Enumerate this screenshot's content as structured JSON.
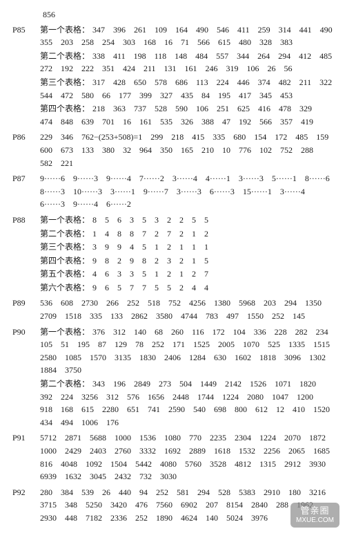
{
  "top_orphan": "856",
  "blocks": [
    {
      "page": "P85",
      "sections": [
        {
          "lede": "第一个表格：",
          "nums": [
            "347",
            "396",
            "261",
            "109",
            "164",
            "490",
            "546",
            "411",
            "259",
            "314",
            "441",
            "490",
            "355",
            "203",
            "258",
            "254",
            "303",
            "168",
            "16",
            "71",
            "566",
            "615",
            "480",
            "328",
            "383"
          ]
        },
        {
          "lede": "第二个表格：",
          "nums": [
            "338",
            "411",
            "198",
            "118",
            "148",
            "484",
            "557",
            "344",
            "264",
            "294",
            "412",
            "485",
            "272",
            "192",
            "222",
            "351",
            "424",
            "211",
            "131",
            "161",
            "246",
            "319",
            "106",
            "26",
            "56"
          ]
        },
        {
          "lede": "第三个表格：",
          "nums": [
            "317",
            "428",
            "650",
            "578",
            "686",
            "113",
            "224",
            "446",
            "374",
            "482",
            "211",
            "322",
            "544",
            "472",
            "580",
            "66",
            "177",
            "399",
            "327",
            "435",
            "84",
            "195",
            "417",
            "345",
            "453"
          ]
        },
        {
          "lede": "第四个表格：",
          "nums": [
            "218",
            "363",
            "737",
            "528",
            "590",
            "106",
            "251",
            "625",
            "416",
            "478",
            "329",
            "474",
            "848",
            "639",
            "701",
            "16",
            "161",
            "535",
            "326",
            "388",
            "47",
            "192",
            "566",
            "357",
            "419"
          ]
        }
      ]
    },
    {
      "page": "P86",
      "sections": [
        {
          "lede": "",
          "nums": [
            "229",
            "346",
            "762−(253+508)=1",
            "299",
            "218",
            "415",
            "335",
            "680",
            "154",
            "172",
            "485",
            "159",
            "600",
            "673",
            "133",
            "380",
            "32",
            "964",
            "350",
            "165",
            "210",
            "10",
            "776",
            "102",
            "752",
            "288",
            "582",
            "221"
          ]
        }
      ]
    },
    {
      "page": "P87",
      "sections": [
        {
          "lede": "",
          "nums": [
            "9······6",
            "9······3",
            "9······4",
            "7······2",
            "3······4",
            "4······1",
            "3······3",
            "5······1",
            "8······6",
            "8······3",
            "10······3",
            "3······1",
            "9······7",
            "3······3",
            "6······3",
            "15······1",
            "3······4",
            "6······3",
            "9······4",
            "6······2"
          ]
        }
      ]
    },
    {
      "page": "P88",
      "sections": [
        {
          "lede": "第一个表格：",
          "nums": [
            "8",
            "5",
            "6",
            "3",
            "5",
            "3",
            "2",
            "2",
            "5",
            "5"
          ]
        },
        {
          "lede": "第二个表格：",
          "nums": [
            "1",
            "4",
            "8",
            "8",
            "7",
            "2",
            "7",
            "2",
            "1",
            "2"
          ]
        },
        {
          "lede": "第三个表格：",
          "nums": [
            "3",
            "9",
            "9",
            "4",
            "5",
            "1",
            "2",
            "1",
            "1",
            "1"
          ]
        },
        {
          "lede": "第四个表格：",
          "nums": [
            "9",
            "8",
            "2",
            "9",
            "8",
            "2",
            "3",
            "2",
            "1",
            "5"
          ]
        },
        {
          "lede": "第五个表格：",
          "nums": [
            "4",
            "6",
            "3",
            "3",
            "5",
            "1",
            "2",
            "1",
            "2",
            "7"
          ]
        },
        {
          "lede": "第六个表格：",
          "nums": [
            "9",
            "6",
            "5",
            "7",
            "7",
            "5",
            "5",
            "2",
            "4",
            "4"
          ]
        }
      ]
    },
    {
      "page": "P89",
      "sections": [
        {
          "lede": "",
          "nums": [
            "536",
            "608",
            "2730",
            "266",
            "252",
            "518",
            "752",
            "4256",
            "1380",
            "5968",
            "203",
            "294",
            "1350",
            "2709",
            "1518",
            "335",
            "133",
            "2862",
            "3580",
            "4744",
            "783",
            "497",
            "1550",
            "252",
            "145"
          ]
        }
      ]
    },
    {
      "page": "P90",
      "sections": [
        {
          "lede": "第一个表格：",
          "nums": [
            "376",
            "312",
            "140",
            "68",
            "260",
            "116",
            "172",
            "104",
            "336",
            "228",
            "282",
            "234",
            "105",
            "51",
            "195",
            "87",
            "129",
            "78",
            "252",
            "171",
            "1525",
            "2005",
            "1070",
            "525",
            "1335",
            "1515",
            "2580",
            "1085",
            "1570",
            "3135",
            "1830",
            "2406",
            "1284",
            "630",
            "1602",
            "1818",
            "3096",
            "1302",
            "1884",
            "3750"
          ]
        },
        {
          "lede": "第二个表格：",
          "nums": [
            "343",
            "196",
            "2849",
            "273",
            "504",
            "1449",
            "2142",
            "1526",
            "1071",
            "1820",
            "392",
            "224",
            "3256",
            "312",
            "576",
            "1656",
            "2448",
            "1744",
            "1224",
            "2080",
            "1047",
            "1200",
            "918",
            "168",
            "615",
            "2280",
            "651",
            "741",
            "2590",
            "540",
            "698",
            "800",
            "612",
            "12",
            "410",
            "1520",
            "434",
            "494",
            "1006",
            "176"
          ]
        }
      ]
    },
    {
      "page": "P91",
      "sections": [
        {
          "lede": "",
          "nums": [
            "5712",
            "2871",
            "5688",
            "1000",
            "1536",
            "1080",
            "770",
            "2235",
            "2304",
            "1224",
            "2070",
            "1872",
            "1000",
            "2429",
            "2403",
            "2760",
            "3332",
            "1692",
            "2889",
            "1618",
            "1532",
            "2256",
            "2065",
            "1685",
            "816",
            "4048",
            "1092",
            "1504",
            "5442",
            "4080",
            "5760",
            "3528",
            "4812",
            "1315",
            "2912",
            "3930",
            "6939",
            "1632",
            "3045",
            "2432",
            "732",
            "3030"
          ]
        }
      ]
    },
    {
      "page": "P92",
      "sections": [
        {
          "lede": "",
          "nums": [
            "280",
            "384",
            "539",
            "26",
            "440",
            "94",
            "252",
            "581",
            "294",
            "528",
            "5383",
            "2910",
            "180",
            "3216",
            "3715",
            "348",
            "5250",
            "3420",
            "476",
            "7560",
            "6902",
            "207",
            "8154",
            "2840",
            "288",
            "1962",
            "2930",
            "448",
            "7182",
            "2336",
            "252",
            "1890",
            "4624",
            "140",
            "5024",
            "3976"
          ]
        }
      ]
    }
  ],
  "join_sep": "　",
  "watermark": {
    "top": "管亲圈",
    "bot": "MXUE.COM"
  }
}
